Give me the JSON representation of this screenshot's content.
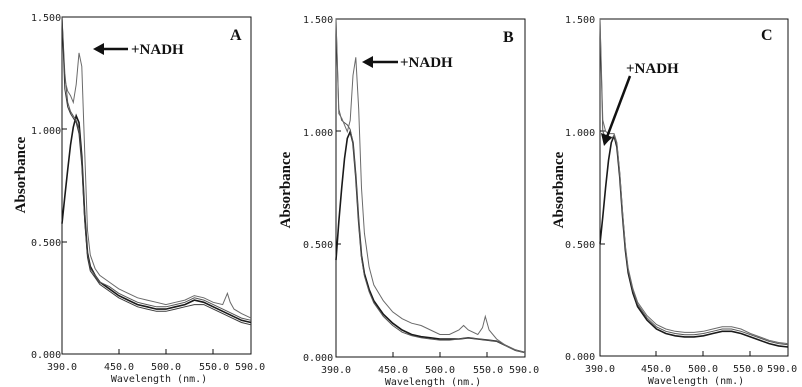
{
  "chart_data": [
    {
      "type": "line",
      "panel_label": "A",
      "xlabel": "Wavelength (nm.)",
      "ylabel": "Absorbance",
      "xlim": [
        390,
        590
      ],
      "ylim": [
        0,
        1.5
      ],
      "x_ticks": [
        "390.0",
        "450.0",
        "500.0",
        "550.0",
        "590.0"
      ],
      "y_ticks": [
        "0.000",
        "0.500",
        "1.000",
        "1.500"
      ],
      "annotation": {
        "text": "+NADH",
        "x": 412,
        "y": 1.34
      },
      "series": [
        {
          "x": [
            390,
            393,
            396,
            399,
            402,
            405,
            408,
            411,
            414,
            417,
            420,
            425,
            430,
            440,
            450,
            460,
            470,
            480,
            490,
            500,
            510,
            520,
            530,
            540,
            550,
            560,
            570,
            580,
            590
          ],
          "values": [
            0.58,
            0.7,
            0.82,
            0.93,
            1.01,
            1.06,
            1.03,
            0.88,
            0.62,
            0.45,
            0.39,
            0.35,
            0.32,
            0.29,
            0.26,
            0.24,
            0.22,
            0.21,
            0.2,
            0.2,
            0.21,
            0.22,
            0.24,
            0.23,
            0.21,
            0.19,
            0.17,
            0.15,
            0.14
          ]
        },
        {
          "x": [
            390,
            393,
            396,
            399,
            402,
            405,
            408,
            411,
            414,
            417,
            420,
            425,
            430,
            440,
            450,
            460,
            470,
            480,
            490,
            500,
            510,
            520,
            530,
            540,
            550,
            560,
            570,
            580,
            590
          ],
          "values": [
            1.5,
            1.25,
            1.12,
            1.08,
            1.06,
            1.04,
            1.0,
            0.86,
            0.6,
            0.44,
            0.38,
            0.35,
            0.32,
            0.3,
            0.27,
            0.25,
            0.23,
            0.22,
            0.21,
            0.21,
            0.22,
            0.23,
            0.25,
            0.24,
            0.22,
            0.2,
            0.18,
            0.16,
            0.15
          ]
        },
        {
          "x": [
            390,
            393,
            396,
            399,
            402,
            405,
            408,
            411,
            414,
            417,
            420,
            425,
            430,
            440,
            450,
            460,
            470,
            480,
            490,
            500,
            510,
            520,
            530,
            540,
            550,
            560,
            565,
            568,
            572,
            580,
            590
          ],
          "values": [
            1.5,
            1.22,
            1.17,
            1.15,
            1.12,
            1.2,
            1.34,
            1.28,
            0.9,
            0.55,
            0.44,
            0.38,
            0.35,
            0.32,
            0.29,
            0.27,
            0.25,
            0.24,
            0.23,
            0.22,
            0.23,
            0.24,
            0.26,
            0.25,
            0.23,
            0.22,
            0.27,
            0.23,
            0.2,
            0.18,
            0.16
          ]
        },
        {
          "x": [
            390,
            393,
            396,
            399,
            402,
            405,
            408,
            411,
            414,
            417,
            420,
            425,
            430,
            440,
            450,
            460,
            470,
            480,
            490,
            500,
            510,
            520,
            530,
            540,
            550,
            560,
            570,
            580,
            590
          ],
          "values": [
            1.5,
            1.18,
            1.1,
            1.07,
            1.05,
            1.03,
            0.98,
            0.84,
            0.59,
            0.43,
            0.37,
            0.34,
            0.31,
            0.28,
            0.25,
            0.23,
            0.21,
            0.2,
            0.19,
            0.19,
            0.2,
            0.21,
            0.22,
            0.22,
            0.2,
            0.18,
            0.16,
            0.14,
            0.13
          ]
        }
      ]
    },
    {
      "type": "line",
      "panel_label": "B",
      "xlabel": "Wavelength (nm.)",
      "ylabel": "Absorbance",
      "xlim": [
        390,
        590
      ],
      "ylim": [
        0,
        1.5
      ],
      "x_ticks": [
        "390.0",
        "450.0",
        "500.0",
        "550.0",
        "590.0"
      ],
      "y_ticks": [
        "0.000",
        "0.500",
        "1.000",
        "1.500"
      ],
      "annotation": {
        "text": "+NADH",
        "x": 412,
        "y": 1.33
      },
      "series": [
        {
          "x": [
            390,
            393,
            396,
            399,
            402,
            405,
            408,
            411,
            414,
            417,
            420,
            425,
            430,
            440,
            450,
            460,
            470,
            480,
            490,
            500,
            510,
            520,
            530,
            540,
            550,
            560,
            570,
            580,
            590
          ],
          "values": [
            0.43,
            0.6,
            0.75,
            0.88,
            0.97,
            1.0,
            0.95,
            0.8,
            0.6,
            0.45,
            0.37,
            0.3,
            0.25,
            0.19,
            0.15,
            0.12,
            0.1,
            0.09,
            0.085,
            0.08,
            0.08,
            0.08,
            0.085,
            0.08,
            0.075,
            0.07,
            0.05,
            0.03,
            0.02
          ]
        },
        {
          "x": [
            390,
            393,
            396,
            399,
            402,
            405,
            408,
            411,
            414,
            417,
            420,
            425,
            430,
            440,
            450,
            460,
            470,
            480,
            490,
            500,
            510,
            520,
            530,
            540,
            550,
            560,
            570,
            580,
            590
          ],
          "values": [
            1.5,
            1.1,
            1.05,
            1.04,
            1.03,
            1.01,
            0.95,
            0.8,
            0.6,
            0.44,
            0.36,
            0.29,
            0.24,
            0.18,
            0.14,
            0.11,
            0.095,
            0.085,
            0.08,
            0.075,
            0.075,
            0.08,
            0.085,
            0.08,
            0.075,
            0.07,
            0.05,
            0.03,
            0.02
          ]
        },
        {
          "x": [
            390,
            393,
            396,
            399,
            402,
            405,
            408,
            411,
            414,
            417,
            420,
            425,
            430,
            440,
            450,
            460,
            470,
            480,
            490,
            500,
            510,
            520,
            525,
            530,
            540,
            545,
            548,
            552,
            560,
            570,
            580,
            590
          ],
          "values": [
            1.5,
            1.08,
            1.06,
            1.03,
            1.0,
            1.05,
            1.25,
            1.33,
            1.1,
            0.75,
            0.55,
            0.4,
            0.32,
            0.25,
            0.2,
            0.17,
            0.15,
            0.14,
            0.12,
            0.1,
            0.1,
            0.12,
            0.14,
            0.12,
            0.1,
            0.13,
            0.18,
            0.12,
            0.08,
            0.05,
            0.03,
            0.02
          ]
        }
      ]
    },
    {
      "type": "line",
      "panel_label": "C",
      "xlabel": "Wavelength (nm.)",
      "ylabel": "Absorbance",
      "xlim": [
        390,
        590
      ],
      "ylim": [
        0,
        1.5
      ],
      "x_ticks": [
        "390.0",
        "450.0",
        "500.0",
        "550.0",
        "590.0"
      ],
      "y_ticks": [
        "0.000",
        "0.500",
        "1.000",
        "1.500"
      ],
      "annotation": {
        "text": "+NADH",
        "x": 392,
        "y": 0.97
      },
      "series": [
        {
          "x": [
            390,
            393,
            396,
            399,
            402,
            405,
            408,
            411,
            414,
            417,
            420,
            425,
            430,
            440,
            450,
            460,
            470,
            480,
            490,
            500,
            510,
            520,
            530,
            540,
            550,
            560,
            570,
            580,
            590
          ],
          "values": [
            0.5,
            0.62,
            0.75,
            0.87,
            0.95,
            0.98,
            0.93,
            0.8,
            0.62,
            0.47,
            0.37,
            0.28,
            0.22,
            0.16,
            0.12,
            0.1,
            0.09,
            0.085,
            0.085,
            0.09,
            0.1,
            0.11,
            0.11,
            0.1,
            0.085,
            0.07,
            0.055,
            0.045,
            0.04
          ]
        },
        {
          "x": [
            390,
            393,
            396,
            399,
            402,
            405,
            408,
            411,
            414,
            417,
            420,
            425,
            430,
            440,
            450,
            460,
            470,
            480,
            490,
            500,
            510,
            520,
            530,
            540,
            550,
            560,
            570,
            580,
            590
          ],
          "values": [
            1.5,
            1.0,
            0.97,
            0.96,
            0.97,
            0.98,
            0.94,
            0.81,
            0.63,
            0.48,
            0.38,
            0.29,
            0.23,
            0.17,
            0.13,
            0.11,
            0.1,
            0.095,
            0.095,
            0.1,
            0.11,
            0.12,
            0.12,
            0.11,
            0.095,
            0.08,
            0.065,
            0.055,
            0.05
          ]
        },
        {
          "x": [
            390,
            393,
            396,
            399,
            402,
            405,
            408,
            411,
            414,
            417,
            420,
            425,
            430,
            440,
            450,
            460,
            470,
            480,
            490,
            500,
            510,
            520,
            530,
            540,
            550,
            560,
            570,
            580,
            590
          ],
          "values": [
            1.5,
            1.05,
            1.0,
            0.99,
            0.99,
            0.99,
            0.95,
            0.82,
            0.64,
            0.49,
            0.39,
            0.3,
            0.24,
            0.18,
            0.14,
            0.12,
            0.11,
            0.105,
            0.105,
            0.11,
            0.12,
            0.13,
            0.13,
            0.12,
            0.1,
            0.085,
            0.07,
            0.06,
            0.055
          ]
        }
      ]
    }
  ]
}
